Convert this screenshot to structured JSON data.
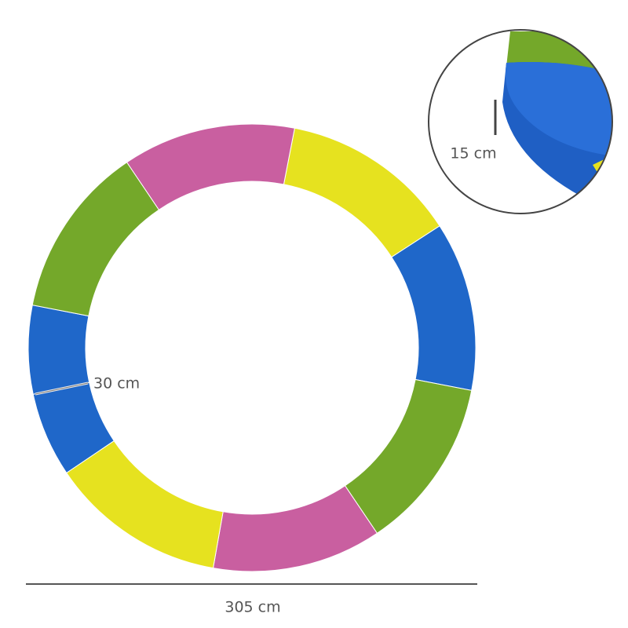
{
  "dimensions": {
    "width_label": "30 cm",
    "thickness_label": "15 cm",
    "diameter_label": "305 cm"
  }
}
